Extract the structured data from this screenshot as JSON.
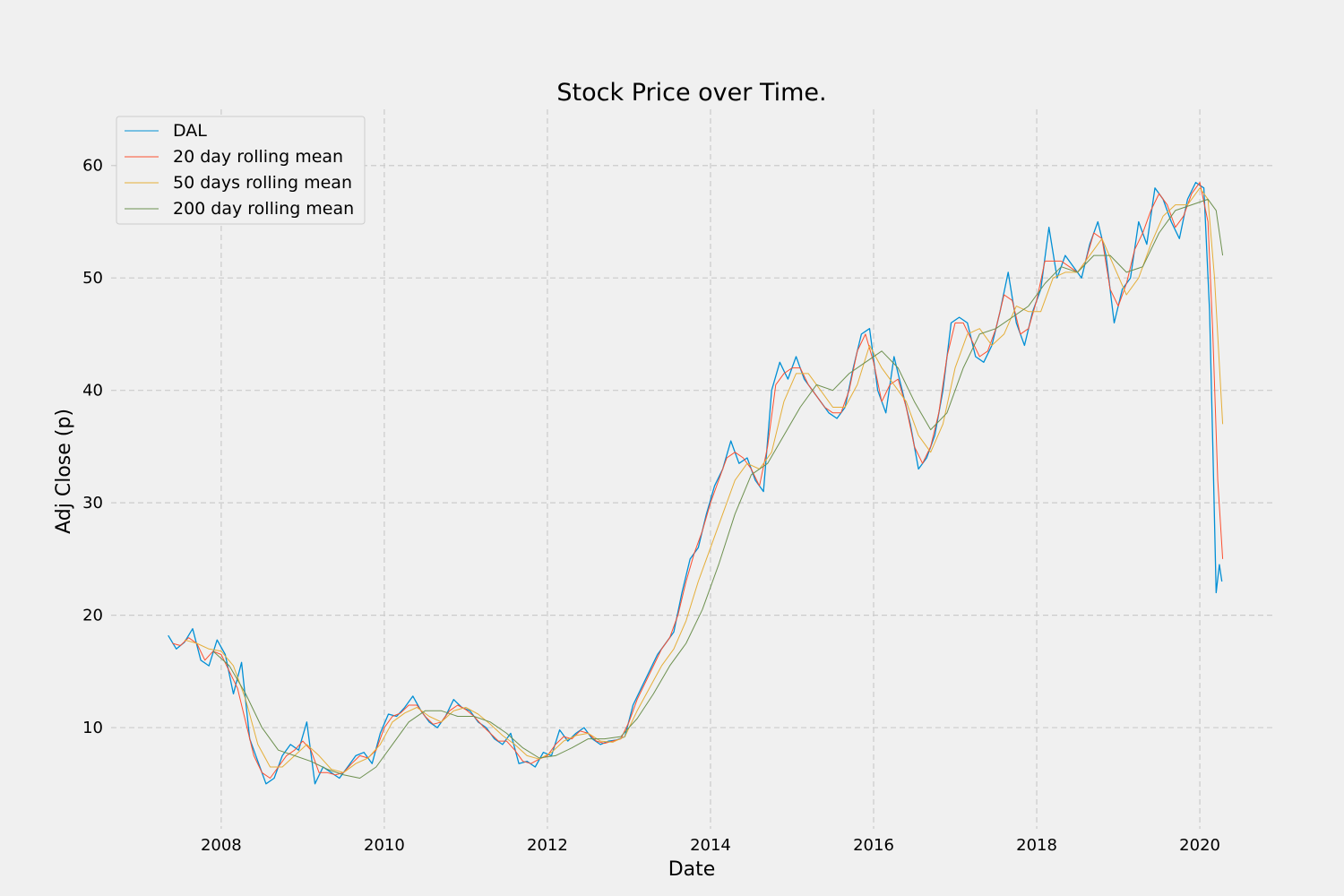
{
  "chart_data": {
    "type": "line",
    "title": "Stock Price over Time.",
    "xlabel": "Date",
    "ylabel": "Adj Close (p)",
    "xlim": [
      2006.65,
      2020.9
    ],
    "ylim": [
      1.0,
      65.0
    ],
    "x_ticks": [
      {
        "value": 2008,
        "label": "2008"
      },
      {
        "value": 2010,
        "label": "2010"
      },
      {
        "value": 2012,
        "label": "2012"
      },
      {
        "value": 2014,
        "label": "2014"
      },
      {
        "value": 2016,
        "label": "2016"
      },
      {
        "value": 2018,
        "label": "2018"
      },
      {
        "value": 2020,
        "label": "2020"
      }
    ],
    "y_ticks": [
      {
        "value": 10,
        "label": "10"
      },
      {
        "value": 20,
        "label": "20"
      },
      {
        "value": 30,
        "label": "30"
      },
      {
        "value": 40,
        "label": "40"
      },
      {
        "value": 50,
        "label": "50"
      },
      {
        "value": 60,
        "label": "60"
      }
    ],
    "grid": true,
    "legend_position": "top-left",
    "series": [
      {
        "name": "DAL",
        "color": "#008fd5",
        "x": [
          2007.35,
          2007.45,
          2007.55,
          2007.65,
          2007.75,
          2007.85,
          2007.95,
          2008.05,
          2008.15,
          2008.25,
          2008.35,
          2008.45,
          2008.55,
          2008.65,
          2008.75,
          2008.85,
          2008.95,
          2009.05,
          2009.15,
          2009.25,
          2009.35,
          2009.45,
          2009.55,
          2009.65,
          2009.75,
          2009.85,
          2009.95,
          2010.05,
          2010.15,
          2010.25,
          2010.35,
          2010.45,
          2010.55,
          2010.65,
          2010.75,
          2010.85,
          2010.95,
          2011.05,
          2011.15,
          2011.25,
          2011.35,
          2011.45,
          2011.55,
          2011.65,
          2011.75,
          2011.85,
          2011.95,
          2012.05,
          2012.15,
          2012.25,
          2012.35,
          2012.45,
          2012.55,
          2012.65,
          2012.75,
          2012.85,
          2012.95,
          2013.05,
          2013.15,
          2013.25,
          2013.35,
          2013.45,
          2013.55,
          2013.65,
          2013.75,
          2013.85,
          2013.95,
          2014.05,
          2014.15,
          2014.25,
          2014.35,
          2014.45,
          2014.55,
          2014.65,
          2014.75,
          2014.85,
          2014.95,
          2015.05,
          2015.15,
          2015.25,
          2015.35,
          2015.45,
          2015.55,
          2015.65,
          2015.75,
          2015.85,
          2015.95,
          2016.05,
          2016.15,
          2016.25,
          2016.35,
          2016.45,
          2016.55,
          2016.65,
          2016.75,
          2016.85,
          2016.95,
          2017.05,
          2017.15,
          2017.25,
          2017.35,
          2017.45,
          2017.55,
          2017.65,
          2017.75,
          2017.85,
          2017.95,
          2018.05,
          2018.15,
          2018.25,
          2018.35,
          2018.45,
          2018.55,
          2018.65,
          2018.75,
          2018.85,
          2018.95,
          2019.05,
          2019.15,
          2019.25,
          2019.35,
          2019.45,
          2019.55,
          2019.65,
          2019.75,
          2019.85,
          2019.95,
          2020.05,
          2020.12,
          2020.16,
          2020.2,
          2020.24,
          2020.27
        ],
        "y": [
          18.2,
          17.0,
          17.6,
          18.8,
          16.0,
          15.5,
          17.8,
          16.5,
          13.0,
          15.8,
          9.0,
          7.0,
          5.0,
          5.5,
          7.5,
          8.5,
          8.0,
          10.5,
          5.0,
          6.5,
          6.0,
          5.5,
          6.5,
          7.5,
          7.8,
          6.8,
          9.5,
          11.2,
          11.0,
          11.8,
          12.8,
          11.5,
          10.5,
          10.0,
          11.0,
          12.5,
          11.8,
          11.5,
          10.5,
          10.0,
          9.0,
          8.5,
          9.5,
          6.8,
          7.0,
          6.5,
          7.8,
          7.5,
          9.8,
          8.8,
          9.5,
          10.0,
          9.0,
          8.5,
          8.8,
          8.9,
          9.2,
          12.0,
          13.5,
          15.0,
          16.5,
          17.5,
          18.5,
          22.0,
          25.0,
          26.0,
          29.0,
          31.5,
          33.0,
          35.5,
          33.5,
          34.0,
          32.0,
          31.0,
          40.0,
          42.5,
          41.0,
          43.0,
          41.0,
          40.0,
          39.0,
          38.0,
          37.5,
          38.5,
          42.0,
          45.0,
          45.5,
          40.0,
          38.0,
          43.0,
          40.0,
          37.0,
          33.0,
          34.0,
          36.0,
          40.0,
          46.0,
          46.5,
          46.0,
          43.0,
          42.5,
          44.0,
          47.0,
          50.5,
          46.0,
          44.0,
          47.0,
          49.0,
          54.5,
          50.0,
          52.0,
          51.0,
          50.0,
          53.0,
          55.0,
          52.0,
          46.0,
          49.0,
          50.0,
          55.0,
          53.0,
          58.0,
          57.0,
          55.0,
          53.5,
          57.0,
          58.5,
          58.0,
          47.0,
          35.0,
          22.0,
          24.5,
          23.0
        ]
      },
      {
        "name": "20 day rolling mean",
        "color": "#fc4f30",
        "x": [
          2007.4,
          2007.5,
          2007.6,
          2007.7,
          2007.8,
          2007.9,
          2008.0,
          2008.1,
          2008.2,
          2008.3,
          2008.4,
          2008.5,
          2008.6,
          2008.7,
          2008.8,
          2008.9,
          2009.0,
          2009.1,
          2009.2,
          2009.3,
          2009.4,
          2009.5,
          2009.6,
          2009.7,
          2009.8,
          2009.9,
          2010.0,
          2010.1,
          2010.2,
          2010.3,
          2010.4,
          2010.5,
          2010.6,
          2010.7,
          2010.8,
          2010.9,
          2011.0,
          2011.1,
          2011.2,
          2011.3,
          2011.4,
          2011.5,
          2011.6,
          2011.7,
          2011.8,
          2011.9,
          2012.0,
          2012.1,
          2012.2,
          2012.3,
          2012.4,
          2012.5,
          2012.6,
          2012.7,
          2012.8,
          2012.9,
          2013.0,
          2013.1,
          2013.2,
          2013.3,
          2013.4,
          2013.5,
          2013.6,
          2013.7,
          2013.8,
          2013.9,
          2014.0,
          2014.1,
          2014.2,
          2014.3,
          2014.4,
          2014.5,
          2014.6,
          2014.7,
          2014.8,
          2014.9,
          2015.0,
          2015.1,
          2015.2,
          2015.3,
          2015.4,
          2015.5,
          2015.6,
          2015.7,
          2015.8,
          2015.9,
          2016.0,
          2016.1,
          2016.2,
          2016.3,
          2016.4,
          2016.5,
          2016.6,
          2016.7,
          2016.8,
          2016.9,
          2017.0,
          2017.1,
          2017.2,
          2017.3,
          2017.4,
          2017.5,
          2017.6,
          2017.7,
          2017.8,
          2017.9,
          2018.0,
          2018.1,
          2018.2,
          2018.3,
          2018.4,
          2018.5,
          2018.6,
          2018.7,
          2018.8,
          2018.9,
          2019.0,
          2019.1,
          2019.2,
          2019.3,
          2019.4,
          2019.5,
          2019.6,
          2019.7,
          2019.8,
          2019.9,
          2020.0,
          2020.1,
          2020.16,
          2020.22,
          2020.28
        ],
        "y": [
          17.5,
          17.3,
          18.0,
          17.5,
          16.0,
          16.8,
          16.5,
          15.0,
          13.5,
          10.5,
          7.5,
          6.0,
          5.5,
          6.5,
          7.5,
          8.0,
          8.8,
          8.0,
          6.0,
          6.0,
          5.8,
          6.0,
          6.8,
          7.5,
          7.3,
          8.0,
          10.0,
          11.0,
          11.3,
          12.0,
          12.0,
          11.0,
          10.3,
          10.5,
          11.5,
          12.0,
          11.6,
          11.0,
          10.2,
          9.5,
          8.8,
          8.8,
          8.0,
          7.0,
          6.8,
          7.2,
          7.5,
          8.5,
          9.2,
          9.0,
          9.7,
          9.5,
          8.8,
          8.6,
          8.8,
          9.0,
          10.5,
          12.5,
          14.0,
          15.5,
          17.0,
          18.0,
          20.0,
          23.0,
          25.5,
          27.5,
          30.0,
          32.0,
          34.0,
          34.5,
          34.0,
          33.0,
          31.5,
          35.0,
          40.5,
          41.5,
          42.0,
          42.0,
          40.5,
          39.5,
          38.5,
          38.0,
          38.0,
          40.0,
          43.5,
          45.0,
          42.5,
          39.0,
          40.5,
          41.0,
          38.5,
          35.0,
          33.5,
          35.0,
          38.0,
          43.0,
          46.0,
          46.0,
          44.5,
          43.0,
          43.5,
          45.5,
          48.5,
          48.0,
          45.0,
          45.5,
          48.0,
          51.5,
          51.5,
          51.5,
          51.0,
          50.5,
          51.5,
          54.0,
          53.5,
          49.0,
          47.5,
          49.5,
          52.5,
          54.0,
          56.0,
          57.5,
          56.5,
          54.5,
          55.5,
          57.5,
          58.5,
          55.0,
          45.0,
          32.0,
          25.0
        ]
      },
      {
        "name": "50 days rolling mean",
        "color": "#e5ae38",
        "x": [
          2007.55,
          2007.7,
          2007.85,
          2008.0,
          2008.15,
          2008.3,
          2008.45,
          2008.6,
          2008.75,
          2008.9,
          2009.05,
          2009.2,
          2009.35,
          2009.5,
          2009.65,
          2009.8,
          2009.95,
          2010.1,
          2010.25,
          2010.4,
          2010.55,
          2010.7,
          2010.85,
          2011.0,
          2011.15,
          2011.3,
          2011.45,
          2011.6,
          2011.75,
          2011.9,
          2012.05,
          2012.2,
          2012.35,
          2012.5,
          2012.65,
          2012.8,
          2012.95,
          2013.1,
          2013.25,
          2013.4,
          2013.55,
          2013.7,
          2013.85,
          2014.0,
          2014.15,
          2014.3,
          2014.45,
          2014.6,
          2014.75,
          2014.9,
          2015.05,
          2015.2,
          2015.35,
          2015.5,
          2015.65,
          2015.8,
          2015.95,
          2016.1,
          2016.25,
          2016.4,
          2016.55,
          2016.7,
          2016.85,
          2017.0,
          2017.15,
          2017.3,
          2017.45,
          2017.6,
          2017.75,
          2017.9,
          2018.05,
          2018.2,
          2018.35,
          2018.5,
          2018.65,
          2018.8,
          2018.95,
          2019.1,
          2019.25,
          2019.4,
          2019.55,
          2019.7,
          2019.85,
          2020.0,
          2020.1,
          2020.18,
          2020.28
        ],
        "y": [
          17.8,
          17.5,
          17.0,
          16.8,
          15.5,
          12.5,
          8.5,
          6.5,
          6.5,
          7.5,
          8.5,
          7.5,
          6.3,
          6.0,
          6.8,
          7.3,
          8.5,
          10.5,
          11.3,
          11.8,
          11.0,
          10.5,
          11.5,
          11.8,
          11.2,
          10.3,
          9.3,
          8.5,
          7.5,
          7.2,
          7.8,
          8.8,
          9.3,
          9.5,
          8.8,
          8.7,
          9.2,
          11.5,
          13.5,
          15.5,
          17.0,
          19.5,
          23.0,
          26.0,
          29.0,
          32.0,
          33.5,
          33.0,
          34.5,
          39.0,
          41.5,
          41.5,
          40.0,
          38.5,
          38.5,
          40.5,
          44.0,
          42.0,
          40.5,
          39.0,
          36.0,
          34.5,
          37.0,
          42.0,
          45.0,
          45.5,
          44.0,
          45.0,
          47.5,
          47.0,
          47.0,
          50.0,
          50.5,
          50.5,
          52.0,
          53.5,
          51.0,
          48.5,
          50.0,
          53.0,
          55.5,
          56.5,
          56.5,
          58.0,
          57.0,
          50.0,
          37.0
        ]
      },
      {
        "name": "200 day rolling mean",
        "color": "#6d904f",
        "x": [
          2007.9,
          2008.1,
          2008.3,
          2008.5,
          2008.7,
          2008.9,
          2009.1,
          2009.3,
          2009.5,
          2009.7,
          2009.9,
          2010.1,
          2010.3,
          2010.5,
          2010.7,
          2010.9,
          2011.1,
          2011.3,
          2011.5,
          2011.7,
          2011.9,
          2012.1,
          2012.3,
          2012.5,
          2012.7,
          2012.9,
          2013.1,
          2013.3,
          2013.5,
          2013.7,
          2013.9,
          2014.1,
          2014.3,
          2014.5,
          2014.7,
          2014.9,
          2015.1,
          2015.3,
          2015.5,
          2015.7,
          2015.9,
          2016.1,
          2016.3,
          2016.5,
          2016.7,
          2016.9,
          2017.1,
          2017.3,
          2017.5,
          2017.7,
          2017.9,
          2018.1,
          2018.3,
          2018.5,
          2018.7,
          2018.9,
          2019.1,
          2019.3,
          2019.5,
          2019.7,
          2019.9,
          2020.1,
          2020.2,
          2020.28
        ],
        "y": [
          16.8,
          15.5,
          13.0,
          10.0,
          8.0,
          7.5,
          7.0,
          6.3,
          5.8,
          5.5,
          6.5,
          8.5,
          10.5,
          11.5,
          11.5,
          11.0,
          11.0,
          10.5,
          9.5,
          8.2,
          7.3,
          7.5,
          8.2,
          9.0,
          9.0,
          9.2,
          10.8,
          13.0,
          15.5,
          17.5,
          20.5,
          24.5,
          29.0,
          32.5,
          33.5,
          36.0,
          38.5,
          40.5,
          40.0,
          41.5,
          42.5,
          43.5,
          42.0,
          39.0,
          36.5,
          38.0,
          42.0,
          45.0,
          45.5,
          46.5,
          47.5,
          49.5,
          51.0,
          50.5,
          52.0,
          52.0,
          50.5,
          51.0,
          54.0,
          56.0,
          56.5,
          57.0,
          56.0,
          52.0
        ]
      }
    ]
  }
}
